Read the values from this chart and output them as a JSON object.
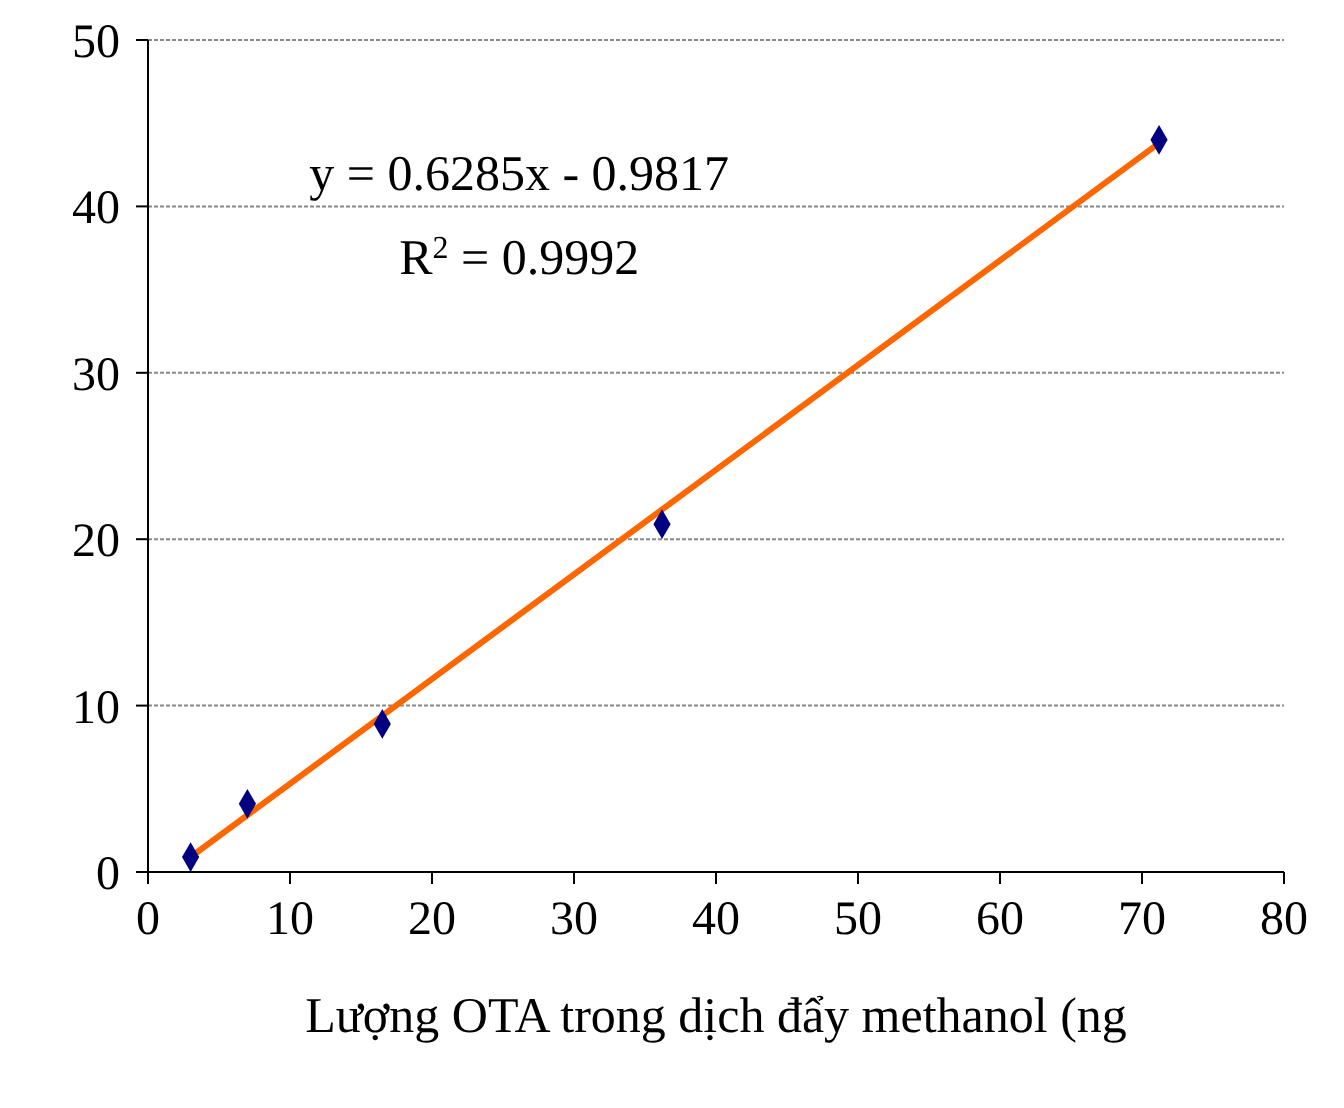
{
  "chart_data": {
    "type": "scatter",
    "xlabel": "Lượng OTA trong dịch đẩy methanol (ng",
    "x": [
      3,
      7,
      16.5,
      36.2,
      71.2
    ],
    "series": [
      {
        "color": "#000080",
        "values": [
          0.9,
          4.1,
          8.9,
          20.9,
          44
        ],
        "marker": "diamond"
      },
      {
        "type": "line",
        "color": "#ff6600",
        "x": [
          3,
          71.2
        ],
        "values": [
          0.9,
          43.8
        ],
        "marker": "none",
        "line_style": "solid"
      }
    ],
    "xlim": [
      0,
      80
    ],
    "xticks": [
      0,
      10,
      20,
      30,
      40,
      50,
      60,
      70,
      80
    ],
    "ylim": [
      0,
      50
    ],
    "yticks": [
      0,
      10,
      20,
      30,
      40,
      50
    ],
    "grid": "y",
    "annotations": [
      "y = 0.6285x - 0.9817",
      "R$^{2}$ = 0.9992"
    ]
  }
}
